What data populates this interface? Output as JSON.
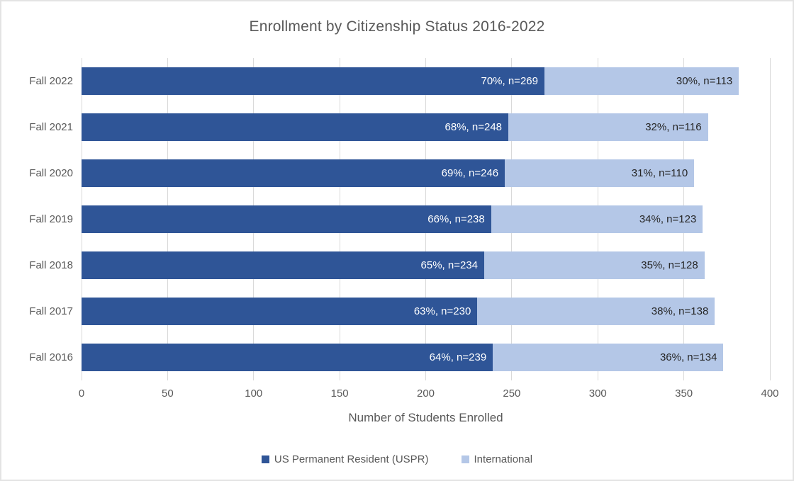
{
  "title": "Enrollment by Citizenship Status 2016-2022",
  "chart_data": {
    "type": "bar",
    "orientation": "horizontal",
    "stacked": true,
    "title": "Enrollment by Citizenship Status 2016-2022",
    "categories": [
      "Fall 2022",
      "Fall 2021",
      "Fall 2020",
      "Fall 2019",
      "Fall 2018",
      "Fall 2017",
      "Fall 2016"
    ],
    "series": [
      {
        "name": "US Permanent Resident (USPR)",
        "color": "#2F5597",
        "values": [
          269,
          248,
          246,
          238,
          234,
          230,
          239
        ],
        "percents": [
          70,
          68,
          69,
          66,
          65,
          63,
          64
        ],
        "labels": [
          "70%, n=269",
          "68%, n=248",
          "69%, n=246",
          "66%, n=238",
          "65%, n=234",
          "63%, n=230",
          "64%, n=239"
        ]
      },
      {
        "name": "International",
        "color": "#B4C7E7",
        "values": [
          113,
          116,
          110,
          123,
          128,
          138,
          134
        ],
        "percents": [
          30,
          32,
          31,
          34,
          35,
          38,
          36
        ],
        "labels": [
          "30%, n=113",
          "32%, n=116",
          "31%, n=110",
          "34%, n=123",
          "35%, n=128",
          "38%, n=138",
          "36%, n=134"
        ]
      }
    ],
    "xlabel": "Number of Students Enrolled",
    "xlim": [
      0,
      400
    ],
    "xticks": [
      0,
      50,
      100,
      150,
      200,
      250,
      300,
      350,
      400
    ],
    "grid": true,
    "gridline_color": "#D9D9D9",
    "legend_position": "bottom",
    "label_color_on_dark": "#FFFFFF",
    "label_color_on_light": "#262626",
    "text_color": "#595959"
  }
}
